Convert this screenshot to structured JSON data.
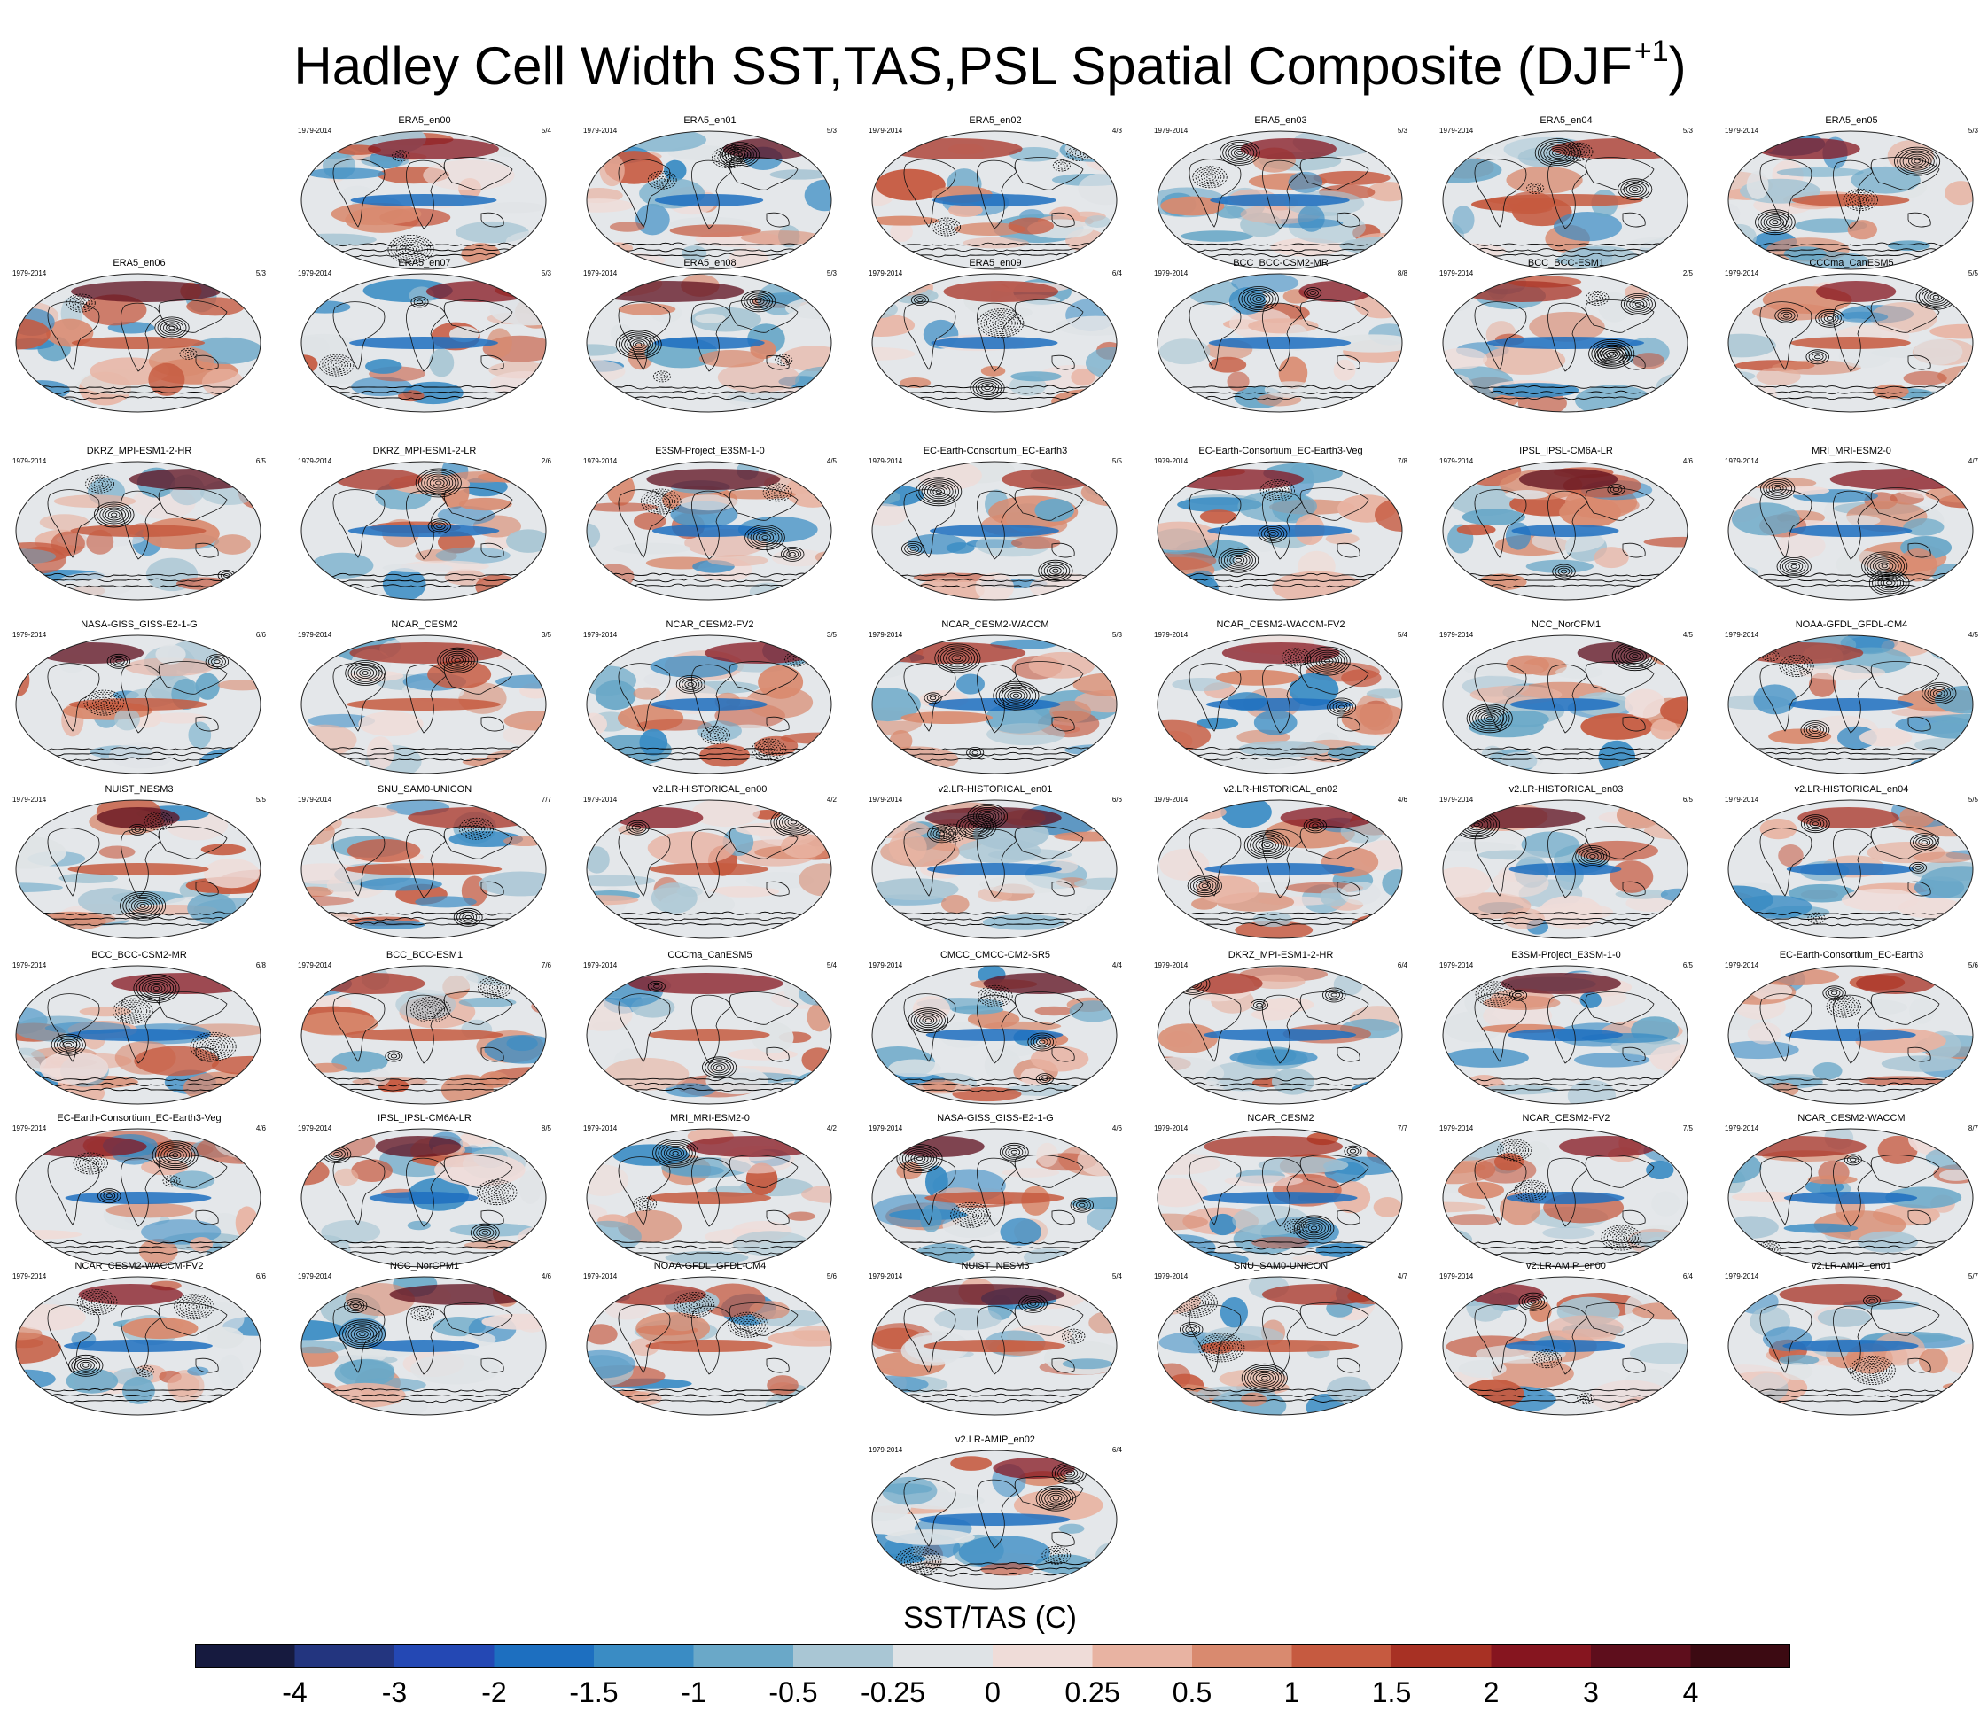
{
  "title": {
    "text": "Hadley Cell Width SST,TAS,PSL Spatial Composite (DJF",
    "superscript": "+1",
    "close": ")"
  },
  "colorbar": {
    "label": "SST/TAS (C)",
    "tick_labels": [
      "-4",
      "-3",
      "-2",
      "-1.5",
      "-1",
      "-0.5",
      "-0.25",
      "0",
      "0.25",
      "0.5",
      "1",
      "1.5",
      "2",
      "3",
      "4"
    ],
    "colors": [
      "#161a3f",
      "#23357f",
      "#2448b4",
      "#1d6fc0",
      "#3a8cc4",
      "#6aa8c8",
      "#a9c6d4",
      "#dfe3e6",
      "#efdcd8",
      "#e8b3a2",
      "#d98a6f",
      "#c65a40",
      "#a83124",
      "#86151f",
      "#5e0e1c",
      "#3c0a12"
    ]
  },
  "chart_data": {
    "type": "heatmap",
    "title": "Hadley Cell Width SST,TAS,PSL Spatial Composite (DJF+1)",
    "colorbar_label": "SST/TAS (C)",
    "colorbar_levels": [
      -4,
      -3,
      -2,
      -1.5,
      -1,
      -0.5,
      -0.25,
      0,
      0.25,
      0.5,
      1,
      1.5,
      2,
      3,
      4
    ],
    "panels": [
      {
        "name": "ERA5_en00",
        "period": "1979-2014",
        "ratio": "5/4",
        "row": 0,
        "col": 1
      },
      {
        "name": "ERA5_en01",
        "period": "1979-2014",
        "ratio": "5/3",
        "row": 0,
        "col": 2
      },
      {
        "name": "ERA5_en02",
        "period": "1979-2014",
        "ratio": "4/3",
        "row": 0,
        "col": 3
      },
      {
        "name": "ERA5_en03",
        "period": "1979-2014",
        "ratio": "5/3",
        "row": 0,
        "col": 4
      },
      {
        "name": "ERA5_en04",
        "period": "1979-2014",
        "ratio": "5/3",
        "row": 0,
        "col": 5
      },
      {
        "name": "ERA5_en05",
        "period": "1979-2014",
        "ratio": "5/3",
        "row": 0,
        "col": 6
      },
      {
        "name": "ERA5_en06",
        "period": "1979-2014",
        "ratio": "5/3",
        "row": 1,
        "col": 0
      },
      {
        "name": "ERA5_en07",
        "period": "1979-2014",
        "ratio": "5/3",
        "row": 1,
        "col": 1
      },
      {
        "name": "ERA5_en08",
        "period": "1979-2014",
        "ratio": "5/3",
        "row": 1,
        "col": 2
      },
      {
        "name": "ERA5_en09",
        "period": "1979-2014",
        "ratio": "6/4",
        "row": 1,
        "col": 3
      },
      {
        "name": "BCC_BCC-CSM2-MR",
        "period": "1979-2014",
        "ratio": "8/8",
        "row": 1,
        "col": 4
      },
      {
        "name": "BCC_BCC-ESM1",
        "period": "1979-2014",
        "ratio": "2/5",
        "row": 1,
        "col": 5
      },
      {
        "name": "CCCma_CanESM5",
        "period": "1979-2014",
        "ratio": "5/5",
        "row": 1,
        "col": 6
      },
      {
        "name": "DKRZ_MPI-ESM1-2-HR",
        "period": "1979-2014",
        "ratio": "6/5",
        "row": 2,
        "col": 0
      },
      {
        "name": "DKRZ_MPI-ESM1-2-LR",
        "period": "1979-2014",
        "ratio": "2/6",
        "row": 2,
        "col": 1
      },
      {
        "name": "E3SM-Project_E3SM-1-0",
        "period": "1979-2014",
        "ratio": "4/5",
        "row": 2,
        "col": 2
      },
      {
        "name": "EC-Earth-Consortium_EC-Earth3",
        "period": "1979-2014",
        "ratio": "5/5",
        "row": 2,
        "col": 3
      },
      {
        "name": "EC-Earth-Consortium_EC-Earth3-Veg",
        "period": "1979-2014",
        "ratio": "7/8",
        "row": 2,
        "col": 4
      },
      {
        "name": "IPSL_IPSL-CM6A-LR",
        "period": "1979-2014",
        "ratio": "4/6",
        "row": 2,
        "col": 5
      },
      {
        "name": "MRI_MRI-ESM2-0",
        "period": "1979-2014",
        "ratio": "4/7",
        "row": 2,
        "col": 6
      },
      {
        "name": "NASA-GISS_GISS-E2-1-G",
        "period": "1979-2014",
        "ratio": "6/6",
        "row": 3,
        "col": 0
      },
      {
        "name": "NCAR_CESM2",
        "period": "1979-2014",
        "ratio": "3/5",
        "row": 3,
        "col": 1
      },
      {
        "name": "NCAR_CESM2-FV2",
        "period": "1979-2014",
        "ratio": "3/5",
        "row": 3,
        "col": 2
      },
      {
        "name": "NCAR_CESM2-WACCM",
        "period": "1979-2014",
        "ratio": "5/3",
        "row": 3,
        "col": 3
      },
      {
        "name": "NCAR_CESM2-WACCM-FV2",
        "period": "1979-2014",
        "ratio": "5/4",
        "row": 3,
        "col": 4
      },
      {
        "name": "NCC_NorCPM1",
        "period": "1979-2014",
        "ratio": "4/5",
        "row": 3,
        "col": 5
      },
      {
        "name": "NOAA-GFDL_GFDL-CM4",
        "period": "1979-2014",
        "ratio": "4/5",
        "row": 3,
        "col": 6
      },
      {
        "name": "NUIST_NESM3",
        "period": "1979-2014",
        "ratio": "5/5",
        "row": 4,
        "col": 0
      },
      {
        "name": "SNU_SAM0-UNICON",
        "period": "1979-2014",
        "ratio": "7/7",
        "row": 4,
        "col": 1
      },
      {
        "name": "v2.LR-HISTORICAL_en00",
        "period": "1979-2014",
        "ratio": "4/2",
        "row": 4,
        "col": 2
      },
      {
        "name": "v2.LR-HISTORICAL_en01",
        "period": "1979-2014",
        "ratio": "6/6",
        "row": 4,
        "col": 3
      },
      {
        "name": "v2.LR-HISTORICAL_en02",
        "period": "1979-2014",
        "ratio": "4/6",
        "row": 4,
        "col": 4
      },
      {
        "name": "v2.LR-HISTORICAL_en03",
        "period": "1979-2014",
        "ratio": "6/5",
        "row": 4,
        "col": 5
      },
      {
        "name": "v2.LR-HISTORICAL_en04",
        "period": "1979-2014",
        "ratio": "5/5",
        "row": 4,
        "col": 6
      },
      {
        "name": "BCC_BCC-CSM2-MR",
        "period": "1979-2014",
        "ratio": "6/8",
        "row": 5,
        "col": 0
      },
      {
        "name": "BCC_BCC-ESM1",
        "period": "1979-2014",
        "ratio": "7/6",
        "row": 5,
        "col": 1
      },
      {
        "name": "CCCma_CanESM5",
        "period": "1979-2014",
        "ratio": "5/4",
        "row": 5,
        "col": 2
      },
      {
        "name": "CMCC_CMCC-CM2-SR5",
        "period": "1979-2014",
        "ratio": "4/4",
        "row": 5,
        "col": 3
      },
      {
        "name": "DKRZ_MPI-ESM1-2-HR",
        "period": "1979-2014",
        "ratio": "6/4",
        "row": 5,
        "col": 4
      },
      {
        "name": "E3SM-Project_E3SM-1-0",
        "period": "1979-2014",
        "ratio": "6/5",
        "row": 5,
        "col": 5
      },
      {
        "name": "EC-Earth-Consortium_EC-Earth3",
        "period": "1979-2014",
        "ratio": "5/6",
        "row": 5,
        "col": 6
      },
      {
        "name": "EC-Earth-Consortium_EC-Earth3-Veg",
        "period": "1979-2014",
        "ratio": "4/6",
        "row": 6,
        "col": 0
      },
      {
        "name": "IPSL_IPSL-CM6A-LR",
        "period": "1979-2014",
        "ratio": "8/5",
        "row": 6,
        "col": 1
      },
      {
        "name": "MRI_MRI-ESM2-0",
        "period": "1979-2014",
        "ratio": "4/2",
        "row": 6,
        "col": 2
      },
      {
        "name": "NASA-GISS_GISS-E2-1-G",
        "period": "1979-2014",
        "ratio": "4/6",
        "row": 6,
        "col": 3
      },
      {
        "name": "NCAR_CESM2",
        "period": "1979-2014",
        "ratio": "7/7",
        "row": 6,
        "col": 4
      },
      {
        "name": "NCAR_CESM2-FV2",
        "period": "1979-2014",
        "ratio": "7/5",
        "row": 6,
        "col": 5
      },
      {
        "name": "NCAR_CESM2-WACCM",
        "period": "1979-2014",
        "ratio": "8/7",
        "row": 6,
        "col": 6
      },
      {
        "name": "NCAR_CESM2-WACCM-FV2",
        "period": "1979-2014",
        "ratio": "6/6",
        "row": 7,
        "col": 0
      },
      {
        "name": "NCC_NorCPM1",
        "period": "1979-2014",
        "ratio": "4/6",
        "row": 7,
        "col": 1
      },
      {
        "name": "NOAA-GFDL_GFDL-CM4",
        "period": "1979-2014",
        "ratio": "5/6",
        "row": 7,
        "col": 2
      },
      {
        "name": "NUIST_NESM3",
        "period": "1979-2014",
        "ratio": "5/4",
        "row": 7,
        "col": 3
      },
      {
        "name": "SNU_SAM0-UNICON",
        "period": "1979-2014",
        "ratio": "4/7",
        "row": 7,
        "col": 4
      },
      {
        "name": "v2.LR-AMIP_en00",
        "period": "1979-2014",
        "ratio": "6/4",
        "row": 7,
        "col": 5
      },
      {
        "name": "v2.LR-AMIP_en01",
        "period": "1979-2014",
        "ratio": "5/7",
        "row": 7,
        "col": 6
      },
      {
        "name": "v2.LR-AMIP_en02",
        "period": "1979-2014",
        "ratio": "6/4",
        "row": 8,
        "col": 3
      }
    ]
  }
}
